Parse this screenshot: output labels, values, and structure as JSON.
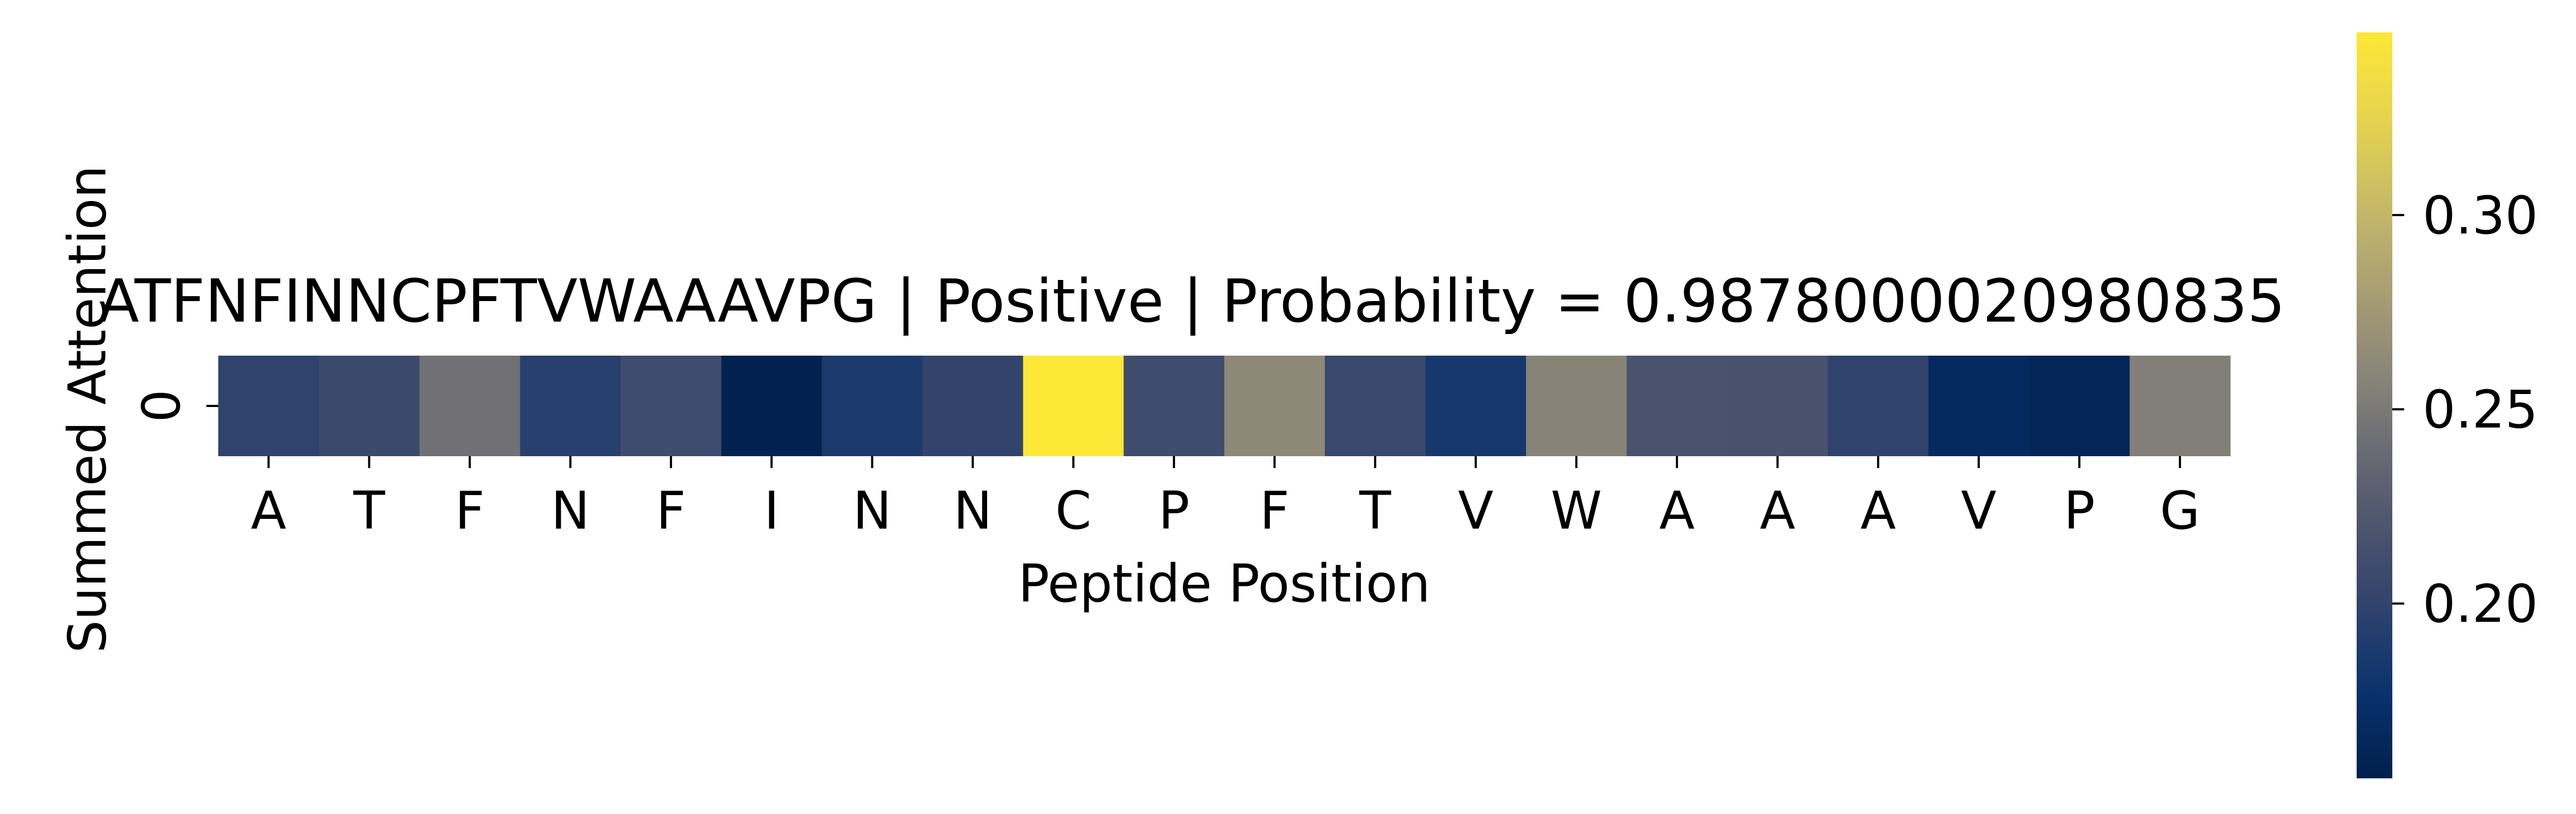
{
  "chart_data": {
    "type": "heatmap",
    "title": "ATFNFINNCPFTVWAAAVPG | Positive | Probability = 0.9878000020980835",
    "xlabel": "Peptide Position",
    "ylabel": "Summed Attention",
    "row_labels": [
      "0"
    ],
    "categories": [
      "A",
      "T",
      "F",
      "N",
      "F",
      "I",
      "N",
      "N",
      "C",
      "P",
      "F",
      "T",
      "V",
      "W",
      "A",
      "A",
      "A",
      "V",
      "P",
      "G"
    ],
    "values": [
      0.199,
      0.207,
      0.243,
      0.195,
      0.21,
      0.157,
      0.188,
      0.201,
      0.347,
      0.21,
      0.262,
      0.205,
      0.185,
      0.258,
      0.218,
      0.217,
      0.199,
      0.167,
      0.162,
      0.254
    ],
    "colorbar": {
      "colormap": "cividis",
      "vmin": 0.155,
      "vmax": 0.347,
      "ticks": [
        0.2,
        0.25,
        0.3
      ],
      "tick_labels": [
        "0.20",
        "0.25",
        "0.30"
      ]
    },
    "grid": false,
    "legend": "none"
  }
}
